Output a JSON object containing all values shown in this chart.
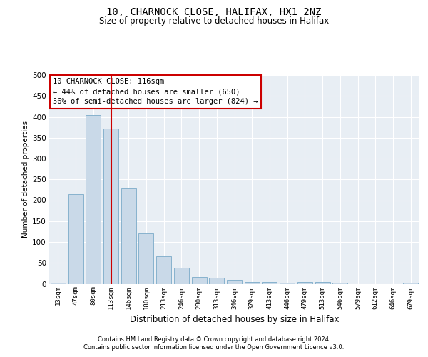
{
  "title_line1": "10, CHARNOCK CLOSE, HALIFAX, HX1 2NZ",
  "title_line2": "Size of property relative to detached houses in Halifax",
  "xlabel": "Distribution of detached houses by size in Halifax",
  "ylabel": "Number of detached properties",
  "categories": [
    "13sqm",
    "47sqm",
    "80sqm",
    "113sqm",
    "146sqm",
    "180sqm",
    "213sqm",
    "246sqm",
    "280sqm",
    "313sqm",
    "346sqm",
    "379sqm",
    "413sqm",
    "446sqm",
    "479sqm",
    "513sqm",
    "546sqm",
    "579sqm",
    "612sqm",
    "646sqm",
    "679sqm"
  ],
  "values": [
    3,
    215,
    404,
    372,
    228,
    120,
    65,
    39,
    17,
    14,
    10,
    5,
    5,
    3,
    4,
    4,
    3,
    0,
    0,
    0,
    2
  ],
  "bar_color": "#c9d9e8",
  "bar_edge_color": "#7aaac8",
  "vline_color": "#cc0000",
  "vline_x": 3.0,
  "annotation_line1": "10 CHARNOCK CLOSE: 116sqm",
  "annotation_line2": "← 44% of detached houses are smaller (650)",
  "annotation_line3": "56% of semi-detached houses are larger (824) →",
  "annotation_box_color": "#cc0000",
  "annotation_box_bg": "#ffffff",
  "ylim": [
    0,
    500
  ],
  "yticks": [
    0,
    50,
    100,
    150,
    200,
    250,
    300,
    350,
    400,
    450,
    500
  ],
  "background_color": "#e8eef4",
  "footer_line1": "Contains HM Land Registry data © Crown copyright and database right 2024.",
  "footer_line2": "Contains public sector information licensed under the Open Government Licence v3.0."
}
